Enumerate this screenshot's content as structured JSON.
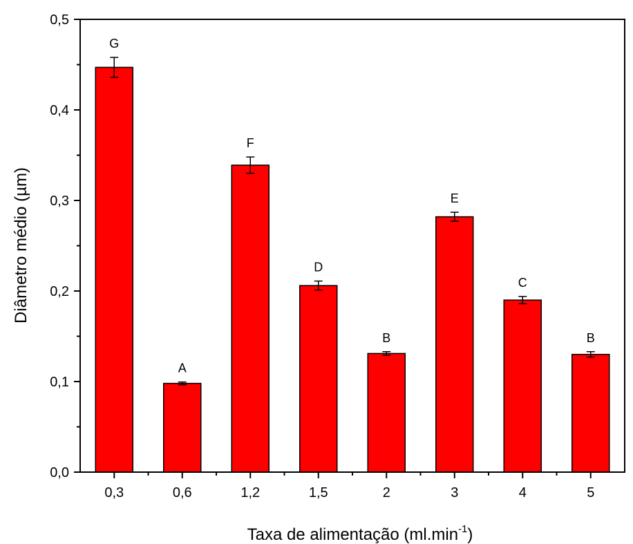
{
  "chart_data": {
    "type": "bar",
    "categories": [
      "0,3",
      "0,6",
      "1,2",
      "1,5",
      "2",
      "3",
      "4",
      "5"
    ],
    "values": [
      0.447,
      0.098,
      0.339,
      0.206,
      0.131,
      0.282,
      0.19,
      0.13
    ],
    "errors": [
      0.011,
      0.0015,
      0.009,
      0.005,
      0.002,
      0.005,
      0.004,
      0.003
    ],
    "letters": [
      "G",
      "A",
      "F",
      "D",
      "B",
      "E",
      "C",
      "B"
    ],
    "xlabel_main": "Taxa de alimentação (ml.min",
    "xlabel_sup": "-1",
    "xlabel_close": ")",
    "ylabel": "Diâmetro médio (µm)",
    "ylim": [
      0,
      0.5
    ],
    "yticks": [
      "0,0",
      "0,1",
      "0,2",
      "0,3",
      "0,4",
      "0,5"
    ],
    "bar_color": "#ff0000",
    "grid": false
  }
}
